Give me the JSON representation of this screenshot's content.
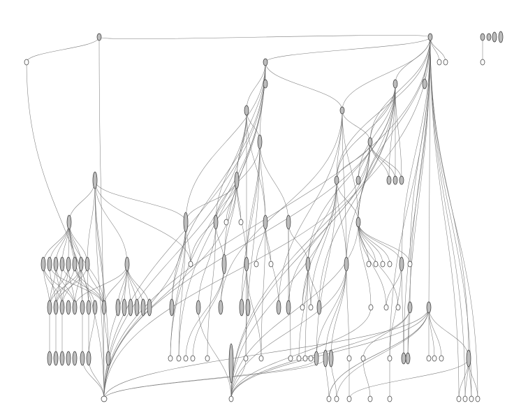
{
  "diagram": {
    "type": "directed-graph",
    "labels_visible": false,
    "colors": {
      "background": "#ffffff",
      "edge": "#6b6b6b",
      "node_stroke": "#333333",
      "node_filled": "#bdbdbd",
      "node_empty": "#ffffff"
    }
  }
}
